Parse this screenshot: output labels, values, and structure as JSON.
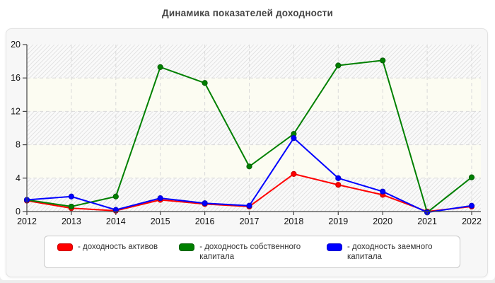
{
  "chart_data": {
    "type": "line",
    "title": "Динамика показателей доходности",
    "x": [
      "2012",
      "2013",
      "2014",
      "2015",
      "2016",
      "2017",
      "2018",
      "2019",
      "2020",
      "2021",
      "2022"
    ],
    "ylim": [
      0,
      20
    ],
    "yticks": [
      0,
      4,
      8,
      12,
      16,
      20
    ],
    "grid": "dashed",
    "legend_position": "bottom",
    "axis_color": "#444444",
    "grid_color": "#d9d9d9",
    "tick_label_color": "#111111",
    "plot_background": {
      "alternating_bands": true,
      "hatched_band_fill": "#fafafa",
      "hatch_line_color": "#e3e3e3",
      "plain_band_fill": "#fcfcf2"
    },
    "series": [
      {
        "name": "доходность активов",
        "legend_label": "- доходность активов",
        "color": "#ff0000",
        "edge_color": "#c80000",
        "values": [
          1.3,
          0.4,
          0.1,
          1.4,
          0.9,
          0.6,
          4.5,
          3.2,
          2.0,
          0.0,
          0.6
        ]
      },
      {
        "name": "доходность собственного капитала",
        "legend_label": "- доходность собственного капитала",
        "color": "#008000",
        "edge_color": "#005c00",
        "values": [
          1.4,
          0.6,
          1.8,
          17.3,
          15.4,
          5.4,
          9.3,
          17.5,
          18.1,
          -0.1,
          4.1
        ]
      },
      {
        "name": "доходность заемного капитала",
        "legend_label": "- доходность заемного капитала",
        "color": "#0000ff",
        "edge_color": "#0000c8",
        "values": [
          1.4,
          1.8,
          0.2,
          1.6,
          1.0,
          0.7,
          8.8,
          4.0,
          2.4,
          -0.1,
          0.7
        ]
      }
    ]
  }
}
